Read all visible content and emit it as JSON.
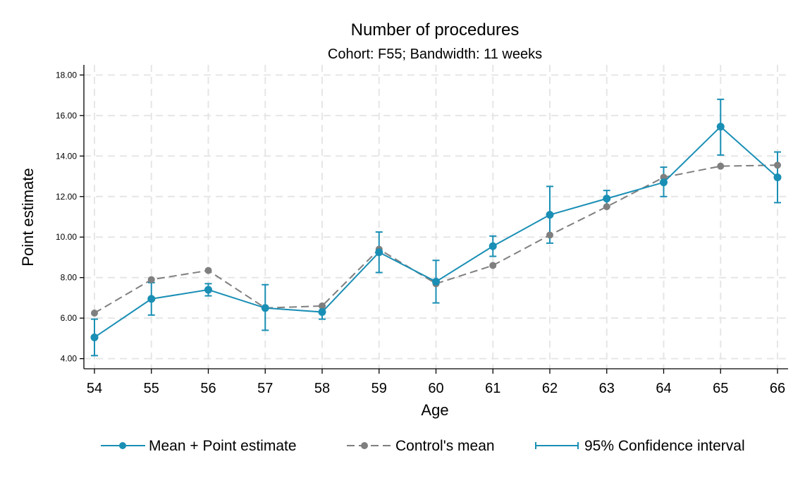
{
  "chart_data": {
    "type": "line",
    "title": "Number of procedures",
    "subtitle": "Cohort: F55; Bandwidth: 11 weeks",
    "xlabel": "Age",
    "ylabel": "Point estimate",
    "x": [
      54,
      55,
      56,
      57,
      58,
      59,
      60,
      61,
      62,
      63,
      64,
      65,
      66
    ],
    "xlim": [
      54,
      66
    ],
    "ylim": [
      3.5,
      18.5
    ],
    "yticks": [
      4,
      6,
      8,
      10,
      12,
      14,
      16,
      18
    ],
    "ytick_labels": [
      "4.00",
      "6.00",
      "8.00",
      "10.00",
      "12.00",
      "14.00",
      "16.00",
      "18.00"
    ],
    "grid": true,
    "legend_position": "bottom",
    "series": [
      {
        "name": "Mean + Point estimate",
        "color": "#1a8fb5",
        "style": "solid",
        "values": [
          5.05,
          6.95,
          7.4,
          6.5,
          6.3,
          9.25,
          7.8,
          9.55,
          11.1,
          11.9,
          12.7,
          15.45,
          12.95
        ],
        "ci_low": [
          4.15,
          6.15,
          7.1,
          5.4,
          5.95,
          8.25,
          6.75,
          9.05,
          9.7,
          11.5,
          12.0,
          14.05,
          11.7
        ],
        "ci_high": [
          5.95,
          7.75,
          7.7,
          7.65,
          6.6,
          10.25,
          8.85,
          10.05,
          12.5,
          12.3,
          13.45,
          16.8,
          14.2
        ]
      },
      {
        "name": "Control's mean",
        "color": "#7f7f7f",
        "style": "dashed",
        "values": [
          6.25,
          7.9,
          8.35,
          6.5,
          6.6,
          9.4,
          7.7,
          8.6,
          10.1,
          11.5,
          12.95,
          13.5,
          13.55
        ]
      }
    ],
    "legend": [
      {
        "label": "Mean + Point estimate",
        "marker": "line-dot"
      },
      {
        "label": "Control's mean",
        "marker": "dashed-dot"
      },
      {
        "label": "95% Confidence interval",
        "marker": "capped-line"
      }
    ]
  }
}
